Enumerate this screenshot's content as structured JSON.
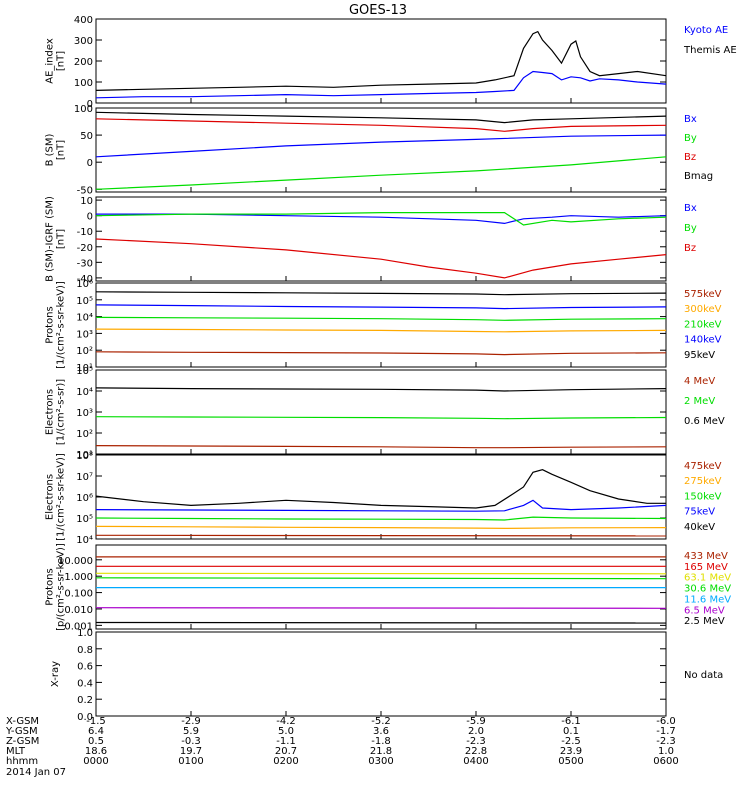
{
  "title": "GOES-13",
  "date": "2014 Jan 07",
  "ephemeris": {
    "rows": [
      {
        "label": "X-GSM",
        "values": [
          "-1.5",
          "-2.9",
          "-4.2",
          "-5.2",
          "-5.9",
          "-6.1",
          "-6.0"
        ]
      },
      {
        "label": "Y-GSM",
        "values": [
          "6.4",
          "5.9",
          "5.0",
          "3.6",
          "2.0",
          "0.1",
          "-1.7"
        ]
      },
      {
        "label": "Z-GSM",
        "values": [
          "0.5",
          "-0.3",
          "-1.1",
          "-1.8",
          "-2.3",
          "-2.5",
          "-2.3"
        ]
      },
      {
        "label": "MLT",
        "values": [
          "18.6",
          "19.7",
          "20.7",
          "21.8",
          "22.8",
          "23.9",
          "1.0"
        ]
      },
      {
        "label": "hhmm",
        "values": [
          "0000",
          "0100",
          "0200",
          "0300",
          "0400",
          "0500",
          "0600"
        ]
      }
    ]
  },
  "colors": {
    "black": "#000000",
    "blue": "#0000ff",
    "green": "#00dd00",
    "red": "#dd0000",
    "orange": "#ffaa00",
    "brown": "#aa2200",
    "yellow": "#e0e000",
    "cyan": "#00aaff",
    "magenta": "#aa00cc"
  },
  "chart_data": [
    {
      "type": "line",
      "ylabel": "AE_index\n[nT]",
      "ylim": [
        0,
        400
      ],
      "yticks": [
        "0",
        "100",
        "200",
        "300",
        "400"
      ],
      "series": [
        {
          "name": "Kyoto AE",
          "color": "blue",
          "x": [
            0,
            0.5,
            1,
            1.5,
            2,
            2.5,
            3,
            3.5,
            4,
            4.2,
            4.4,
            4.5,
            4.6,
            4.7,
            4.8,
            4.9,
            5.0,
            5.1,
            5.2,
            5.3,
            5.5,
            5.7,
            6.0
          ],
          "y": [
            25,
            30,
            30,
            35,
            40,
            35,
            40,
            45,
            50,
            55,
            60,
            120,
            150,
            145,
            140,
            110,
            125,
            120,
            105,
            115,
            110,
            100,
            90
          ]
        },
        {
          "name": "Themis AE",
          "color": "black",
          "x": [
            0,
            0.5,
            1,
            1.5,
            2,
            2.5,
            3,
            3.5,
            4,
            4.2,
            4.4,
            4.5,
            4.6,
            4.65,
            4.7,
            4.8,
            4.9,
            5.0,
            5.05,
            5.1,
            5.2,
            5.3,
            5.5,
            5.7,
            6.0
          ],
          "y": [
            60,
            65,
            70,
            75,
            80,
            75,
            85,
            90,
            95,
            110,
            130,
            260,
            330,
            340,
            300,
            250,
            190,
            280,
            295,
            220,
            150,
            130,
            140,
            150,
            130
          ]
        }
      ],
      "legend_extra": []
    },
    {
      "type": "line",
      "ylabel": "B (SM)\n[nT]",
      "ylim": [
        -55,
        100
      ],
      "yticks": [
        "-50",
        "0",
        "50",
        "100"
      ],
      "series": [
        {
          "name": "Bx",
          "color": "blue",
          "x": [
            0,
            1,
            2,
            3,
            4,
            5,
            6
          ],
          "y": [
            10,
            20,
            30,
            37,
            42,
            48,
            50
          ]
        },
        {
          "name": "By",
          "color": "green",
          "x": [
            0,
            1,
            2,
            3,
            4,
            5,
            6
          ],
          "y": [
            -50,
            -42,
            -33,
            -24,
            -16,
            -5,
            10
          ]
        },
        {
          "name": "Bz",
          "color": "red",
          "x": [
            0,
            1,
            2,
            3,
            4,
            4.3,
            4.6,
            5,
            6
          ],
          "y": [
            80,
            76,
            72,
            68,
            62,
            57,
            62,
            66,
            68
          ]
        },
        {
          "name": "Bmag",
          "color": "black",
          "x": [
            0,
            1,
            2,
            3,
            4,
            4.3,
            4.6,
            5,
            6
          ],
          "y": [
            92,
            88,
            85,
            82,
            78,
            73,
            78,
            80,
            85
          ]
        }
      ],
      "legend_extra": []
    },
    {
      "type": "line",
      "ylabel": "B (SM)-IGRF (SM)\n[nT]",
      "ylim": [
        -42,
        12
      ],
      "yticks": [
        "-40",
        "-30",
        "-20",
        "-10",
        "0",
        "10"
      ],
      "series": [
        {
          "name": "Bx",
          "color": "blue",
          "x": [
            0,
            1,
            2,
            3,
            4,
            4.3,
            4.5,
            4.8,
            5,
            5.5,
            6
          ],
          "y": [
            1,
            1,
            0,
            -1,
            -3,
            -5,
            -2,
            -1,
            0,
            -1,
            0
          ]
        },
        {
          "name": "By",
          "color": "green",
          "x": [
            0,
            1,
            2,
            3,
            4,
            4.3,
            4.5,
            4.8,
            5,
            5.5,
            6
          ],
          "y": [
            0,
            1,
            1,
            2,
            2,
            2,
            -6,
            -3,
            -4,
            -2,
            -1
          ]
        },
        {
          "name": "Bz",
          "color": "red",
          "x": [
            0,
            1,
            2,
            3,
            3.5,
            4,
            4.3,
            4.6,
            5,
            5.5,
            6
          ],
          "y": [
            -15,
            -18,
            -22,
            -28,
            -33,
            -37,
            -40,
            -35,
            -31,
            -28,
            -25
          ]
        }
      ],
      "legend_extra": []
    },
    {
      "type": "line",
      "ylabel": "Protons\n[1/(cm²-s-sr-keV)]",
      "yscale": "log",
      "ylim": [
        10,
        1000000
      ],
      "yticks": [
        "10¹",
        "10²",
        "10³",
        "10⁴",
        "10⁵",
        "10⁶"
      ],
      "series": [
        {
          "name": "575keV",
          "color": "brown",
          "x": [
            0,
            1,
            2,
            3,
            4,
            4.3,
            5,
            6
          ],
          "y": [
            80,
            75,
            72,
            68,
            60,
            55,
            65,
            70
          ]
        },
        {
          "name": "300keV",
          "color": "orange",
          "x": [
            0,
            1,
            2,
            3,
            4,
            4.3,
            5,
            6
          ],
          "y": [
            1800,
            1700,
            1600,
            1500,
            1300,
            1250,
            1400,
            1500
          ]
        },
        {
          "name": "210keV",
          "color": "green",
          "x": [
            0,
            1,
            2,
            3,
            4,
            4.3,
            5,
            6
          ],
          "y": [
            9000,
            8500,
            8000,
            7500,
            6500,
            6000,
            7000,
            7500
          ]
        },
        {
          "name": "140keV",
          "color": "blue",
          "x": [
            0,
            1,
            2,
            3,
            4,
            4.3,
            5,
            6
          ],
          "y": [
            50000,
            45000,
            40000,
            37000,
            33000,
            30000,
            35000,
            38000
          ]
        },
        {
          "name": "95keV",
          "color": "black",
          "x": [
            0,
            1,
            2,
            3,
            4,
            4.3,
            5,
            6
          ],
          "y": [
            300000,
            280000,
            260000,
            240000,
            220000,
            200000,
            230000,
            250000
          ]
        }
      ],
      "legend_extra": []
    },
    {
      "type": "line",
      "ylabel": "Electrons\n[1/(cm²-s-sr)]",
      "yscale": "log",
      "ylim": [
        10,
        100000
      ],
      "yticks": [
        "10¹",
        "10²",
        "10³",
        "10⁴",
        "10⁵"
      ],
      "series": [
        {
          "name": "4 MeV",
          "color": "brown",
          "x": [
            0,
            1,
            2,
            3,
            4,
            4.3,
            5,
            6
          ],
          "y": [
            25,
            24,
            23,
            22,
            20,
            20,
            21,
            22
          ]
        },
        {
          "name": "2 MeV",
          "color": "green",
          "x": [
            0,
            1,
            2,
            3,
            4,
            4.3,
            5,
            6
          ],
          "y": [
            600,
            580,
            560,
            540,
            500,
            480,
            520,
            550
          ]
        },
        {
          "name": "0.6 MeV",
          "color": "black",
          "x": [
            0,
            1,
            2,
            3,
            4,
            4.3,
            5,
            6
          ],
          "y": [
            14000,
            13000,
            12500,
            12000,
            11000,
            10000,
            11500,
            13000
          ]
        }
      ],
      "legend_extra": []
    },
    {
      "type": "line",
      "ylabel": "Electrons\n[1/(cm²-s-sr-keV)]",
      "yscale": "log",
      "ylim": [
        10000,
        100000000
      ],
      "yticks": [
        "10⁴",
        "10⁵",
        "10⁶",
        "10⁷",
        "10⁸"
      ],
      "series": [
        {
          "name": "475keV",
          "color": "brown",
          "x": [
            0,
            6
          ],
          "y": [
            15000,
            14000
          ]
        },
        {
          "name": "275keV",
          "color": "orange",
          "x": [
            0,
            1,
            2,
            3,
            4,
            4.3,
            5,
            6
          ],
          "y": [
            40000,
            38000,
            36000,
            35000,
            33000,
            32000,
            34000,
            35000
          ]
        },
        {
          "name": "150keV",
          "color": "green",
          "x": [
            0,
            1,
            2,
            3,
            4,
            4.3,
            4.6,
            5,
            6
          ],
          "y": [
            100000,
            95000,
            90000,
            88000,
            85000,
            80000,
            110000,
            100000,
            95000
          ]
        },
        {
          "name": "75keV",
          "color": "blue",
          "x": [
            0,
            1,
            2,
            3,
            4,
            4.3,
            4.5,
            4.6,
            4.7,
            5,
            5.5,
            6
          ],
          "y": [
            250000,
            240000,
            230000,
            220000,
            210000,
            220000,
            400000,
            700000,
            300000,
            250000,
            300000,
            400000
          ]
        },
        {
          "name": "40keV",
          "color": "black",
          "x": [
            0,
            0.5,
            1,
            1.5,
            2,
            2.5,
            3,
            3.5,
            4,
            4.2,
            4.4,
            4.5,
            4.6,
            4.7,
            4.8,
            5,
            5.2,
            5.5,
            5.8,
            6
          ],
          "y": [
            1100000,
            600000,
            400000,
            500000,
            700000,
            550000,
            400000,
            350000,
            300000,
            400000,
            1500000,
            3000000,
            15000000,
            20000000,
            12000000,
            5000000,
            2000000,
            800000,
            500000,
            500000
          ]
        }
      ],
      "legend_extra": []
    },
    {
      "type": "line",
      "ylabel": "Protons\n[p/(cm²-s-sr-keV)]",
      "yscale": "log",
      "ylim": [
        0.0006,
        80
      ],
      "yticks": [
        "0.001",
        "0.010",
        "0.100",
        "1.000",
        "10.000"
      ],
      "series": [
        {
          "name": "433 MeV",
          "color": "brown",
          "x": [
            0,
            6
          ],
          "y": [
            15,
            15
          ]
        },
        {
          "name": "165 MeV",
          "color": "red",
          "x": [
            0,
            6
          ],
          "y": [
            4,
            4
          ]
        },
        {
          "name": "63.1 MeV",
          "color": "yellow",
          "x": [
            0,
            6
          ],
          "y": [
            1.5,
            1.4
          ]
        },
        {
          "name": "30.6 MeV",
          "color": "green",
          "x": [
            0,
            6
          ],
          "y": [
            0.8,
            0.7
          ]
        },
        {
          "name": "11.6 MeV",
          "color": "cyan",
          "x": [
            0,
            6
          ],
          "y": [
            0.2,
            0.2
          ]
        },
        {
          "name": "6.5 MeV",
          "color": "magenta",
          "x": [
            0,
            6
          ],
          "y": [
            0.012,
            0.011
          ]
        },
        {
          "name": "2.5 MeV",
          "color": "black",
          "x": [
            0,
            6
          ],
          "y": [
            0.0015,
            0.0014
          ]
        }
      ],
      "legend_extra": []
    },
    {
      "type": "line",
      "ylabel": "X-ray",
      "ylim": [
        0,
        1
      ],
      "yticks": [
        "0.0",
        "0.2",
        "0.4",
        "0.6",
        "0.8",
        "1.0"
      ],
      "series": [],
      "legend_extra": [
        "No data"
      ]
    }
  ]
}
